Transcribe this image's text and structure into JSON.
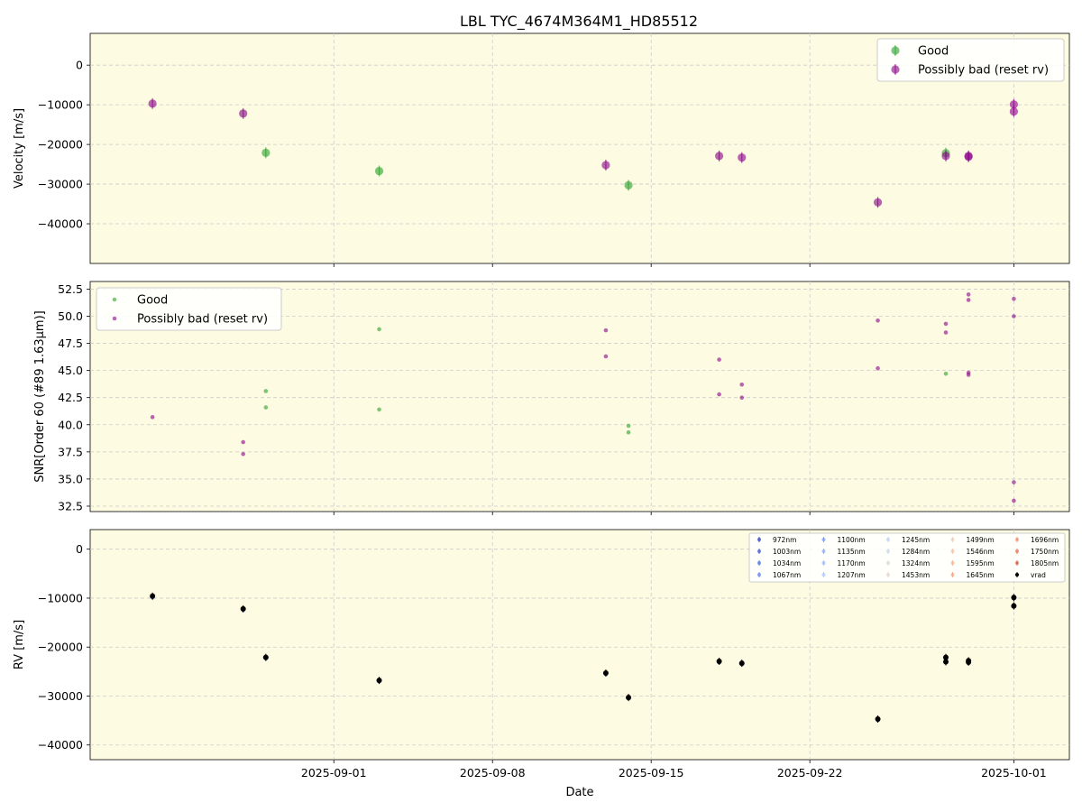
{
  "title": "LBL TYC_4674M364M1_HD85512",
  "xlabel": "Date",
  "x_ticks": [
    "2025-09-01",
    "2025-09-08",
    "2025-09-15",
    "2025-09-22",
    "2025-10-01"
  ],
  "colors": {
    "panel_bg": "#fdfbe1",
    "good": "#2ca02c",
    "bad": "#8b008b",
    "grid": "#cccccc"
  },
  "chart_data": [
    {
      "type": "scatter",
      "name": "velocity-panel",
      "ylabel": "Velocity [m/s]",
      "ylim": [
        -50000,
        8000
      ],
      "yticks": [
        0,
        -10000,
        -20000,
        -30000,
        -40000
      ],
      "ytick_labels": [
        "0",
        "−10000",
        "−20000",
        "−30000",
        "−40000"
      ],
      "xlim": [
        "2025-08-25",
        "2025-10-03"
      ],
      "grid": true,
      "legend": "top-right",
      "series": [
        {
          "name": "Good",
          "color": "#2ca02c",
          "points": [
            {
              "x": "2025-08-29",
              "y": -22100
            },
            {
              "x": "2025-09-03",
              "y": -26700
            },
            {
              "x": "2025-09-14",
              "y": -30300
            },
            {
              "x": "2025-09-28",
              "y": -22200
            }
          ]
        },
        {
          "name": "Possibly bad (reset rv)",
          "color": "#8b008b",
          "points": [
            {
              "x": "2025-08-24",
              "y": -9700
            },
            {
              "x": "2025-08-28",
              "y": -12200
            },
            {
              "x": "2025-09-13",
              "y": -25200
            },
            {
              "x": "2025-09-18",
              "y": -22900
            },
            {
              "x": "2025-09-19",
              "y": -23300
            },
            {
              "x": "2025-09-25",
              "y": -34600
            },
            {
              "x": "2025-09-28",
              "y": -22900
            },
            {
              "x": "2025-09-29",
              "y": -22900
            },
            {
              "x": "2025-09-29",
              "y": -23100
            },
            {
              "x": "2025-10-01",
              "y": -11700
            },
            {
              "x": "2025-10-01",
              "y": -9900
            }
          ]
        }
      ]
    },
    {
      "type": "scatter",
      "name": "snr-panel",
      "ylabel": "SNR[Order 60 (#89 1.63μm)]",
      "ylim": [
        32,
        53.2
      ],
      "yticks": [
        32.5,
        35.0,
        37.5,
        40.0,
        42.5,
        45.0,
        47.5,
        50.0,
        52.5
      ],
      "ytick_labels": [
        "32.5",
        "35.0",
        "37.5",
        "40.0",
        "42.5",
        "45.0",
        "47.5",
        "50.0",
        "52.5"
      ],
      "xlim": [
        "2025-08-25",
        "2025-10-03"
      ],
      "grid": true,
      "legend": "top-left",
      "series": [
        {
          "name": "Good",
          "color": "#2ca02c",
          "points": [
            {
              "x": "2025-08-29",
              "y": 43.1
            },
            {
              "x": "2025-08-29",
              "y": 41.6
            },
            {
              "x": "2025-09-03",
              "y": 48.8
            },
            {
              "x": "2025-09-03",
              "y": 41.4
            },
            {
              "x": "2025-09-14",
              "y": 39.9
            },
            {
              "x": "2025-09-14",
              "y": 39.3
            },
            {
              "x": "2025-09-28",
              "y": 44.7
            }
          ]
        },
        {
          "name": "Possibly bad (reset rv)",
          "color": "#8b008b",
          "points": [
            {
              "x": "2025-08-24",
              "y": 40.7
            },
            {
              "x": "2025-08-28",
              "y": 38.4
            },
            {
              "x": "2025-08-28",
              "y": 37.3
            },
            {
              "x": "2025-09-13",
              "y": 48.7
            },
            {
              "x": "2025-09-13",
              "y": 46.3
            },
            {
              "x": "2025-09-18",
              "y": 46.0
            },
            {
              "x": "2025-09-18",
              "y": 42.8
            },
            {
              "x": "2025-09-19",
              "y": 43.7
            },
            {
              "x": "2025-09-19",
              "y": 42.5
            },
            {
              "x": "2025-09-25",
              "y": 49.6
            },
            {
              "x": "2025-09-25",
              "y": 45.2
            },
            {
              "x": "2025-09-28",
              "y": 49.3
            },
            {
              "x": "2025-09-28",
              "y": 48.5
            },
            {
              "x": "2025-09-29",
              "y": 52.0
            },
            {
              "x": "2025-09-29",
              "y": 51.5
            },
            {
              "x": "2025-09-29",
              "y": 44.8
            },
            {
              "x": "2025-09-29",
              "y": 44.6
            },
            {
              "x": "2025-10-01",
              "y": 51.6
            },
            {
              "x": "2025-10-01",
              "y": 50.0
            },
            {
              "x": "2025-10-01",
              "y": 34.7
            },
            {
              "x": "2025-10-01",
              "y": 33.0
            }
          ]
        }
      ]
    },
    {
      "type": "scatter",
      "name": "rv-panel",
      "ylabel": "RV [m/s]",
      "ylim": [
        -43000,
        4000
      ],
      "yticks": [
        0,
        -10000,
        -20000,
        -30000,
        -40000
      ],
      "ytick_labels": [
        "0",
        "−10000",
        "−20000",
        "−30000",
        "−40000"
      ],
      "xlim": [
        "2025-08-25",
        "2025-10-03"
      ],
      "grid": true,
      "legend": "top-right",
      "legend_columns": 5,
      "bands": [
        {
          "name": "972nm",
          "color": "#3b4cc0"
        },
        {
          "name": "1003nm",
          "color": "#4a63d3"
        },
        {
          "name": "1034nm",
          "color": "#5a78e4"
        },
        {
          "name": "1067nm",
          "color": "#6a8bef"
        },
        {
          "name": "1100nm",
          "color": "#7b9ff9"
        },
        {
          "name": "1135nm",
          "color": "#8db0fe"
        },
        {
          "name": "1170nm",
          "color": "#9ebeff"
        },
        {
          "name": "1207nm",
          "color": "#afcafc"
        },
        {
          "name": "1245nm",
          "color": "#c0d4f5"
        },
        {
          "name": "1284nm",
          "color": "#cedaeb"
        },
        {
          "name": "1324nm",
          "color": "#dbdcde"
        },
        {
          "name": "1453nm",
          "color": "#e6d7cf"
        },
        {
          "name": "1499nm",
          "color": "#efcfbf"
        },
        {
          "name": "1546nm",
          "color": "#f4c4ad"
        },
        {
          "name": "1595nm",
          "color": "#f5b89b"
        },
        {
          "name": "1645nm",
          "color": "#f5a989"
        },
        {
          "name": "1696nm",
          "color": "#ef9474"
        },
        {
          "name": "1750nm",
          "color": "#e67b5f"
        },
        {
          "name": "1805nm",
          "color": "#d8604b"
        },
        {
          "name": "vrad",
          "color": "#000000"
        }
      ],
      "vrad_points": [
        {
          "x": "2025-08-24",
          "y": -9600
        },
        {
          "x": "2025-08-28",
          "y": -12200
        },
        {
          "x": "2025-08-29",
          "y": -22100
        },
        {
          "x": "2025-09-03",
          "y": -26800
        },
        {
          "x": "2025-09-13",
          "y": -25300
        },
        {
          "x": "2025-09-14",
          "y": -30300
        },
        {
          "x": "2025-09-18",
          "y": -22900
        },
        {
          "x": "2025-09-19",
          "y": -23300
        },
        {
          "x": "2025-09-25",
          "y": -34700
        },
        {
          "x": "2025-09-28",
          "y": -22100
        },
        {
          "x": "2025-09-28",
          "y": -23000
        },
        {
          "x": "2025-09-29",
          "y": -22800
        },
        {
          "x": "2025-09-29",
          "y": -23100
        },
        {
          "x": "2025-10-01",
          "y": -11600
        },
        {
          "x": "2025-10-01",
          "y": -9900
        }
      ]
    }
  ]
}
